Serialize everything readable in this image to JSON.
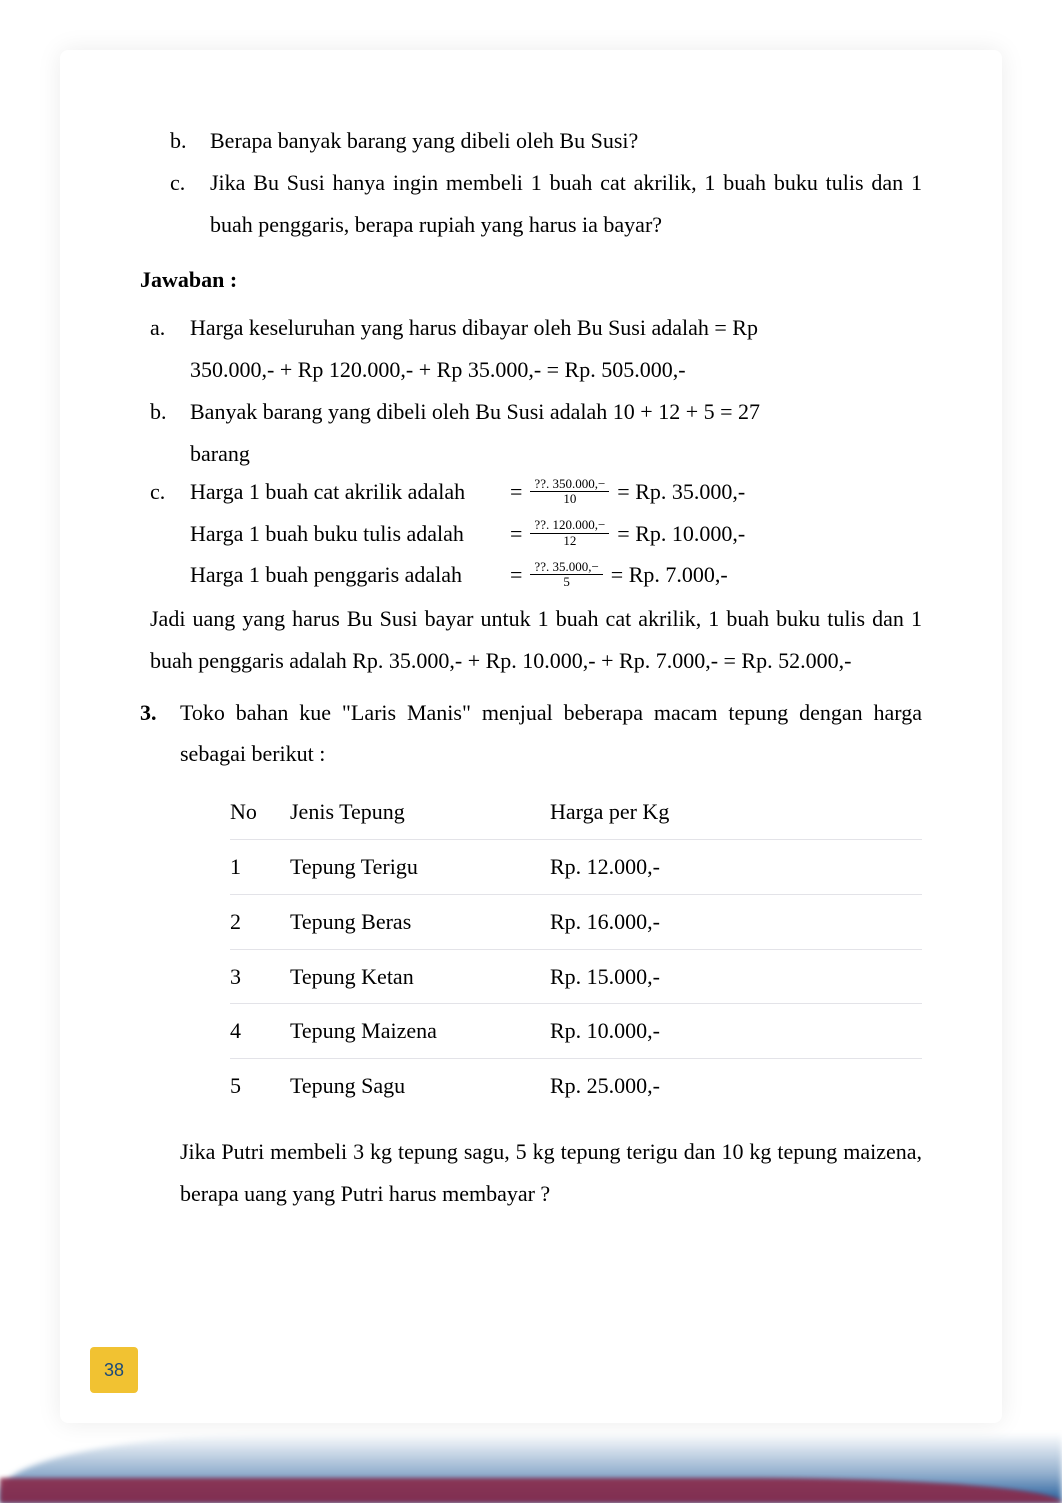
{
  "questions": {
    "b": {
      "marker": "b.",
      "text": "Berapa banyak barang yang dibeli oleh Bu Susi?"
    },
    "c": {
      "marker": "c.",
      "text": "Jika Bu Susi hanya ingin membeli 1 buah cat akrilik, 1 buah buku tulis dan 1 buah penggaris, berapa rupiah yang harus ia bayar?"
    }
  },
  "jawaban_label": "Jawaban :",
  "answers": {
    "a": {
      "marker": "a.",
      "line1": "Harga keseluruhan yang harus dibayar oleh Bu Susi adalah = Rp",
      "line2": "350.000,- + Rp 120.000,- + Rp 35.000,- = Rp. 505.000,-"
    },
    "b": {
      "marker": "b.",
      "line1": "Banyak barang yang dibeli oleh Bu Susi adalah 10 + 12 + 5 = 27",
      "line2": "barang"
    },
    "c": {
      "marker": "c.",
      "calc1": {
        "label": "Harga 1 buah cat akrilik adalah",
        "prefix": "= ",
        "frac_num": "??.  350.000,−",
        "frac_den": "10",
        "result": " = Rp. 35.000,-"
      },
      "calc2": {
        "label": "Harga 1 buah buku tulis adalah",
        "prefix": "= ",
        "frac_num": "??.  120.000,−",
        "frac_den": "12",
        "result": " = Rp. 10.000,-"
      },
      "calc3": {
        "label": "Harga 1 buah penggaris adalah",
        "prefix": "= ",
        "frac_num": "??.  35.000,−",
        "frac_den": "5",
        "result": " = Rp. 7.000,-"
      }
    },
    "conclusion": "Jadi uang yang harus Bu Susi bayar untuk 1 buah cat akrilik, 1 buah buku tulis dan 1 buah penggaris adalah Rp. 35.000,- + Rp. 10.000,- + Rp. 7.000,- = Rp. 52.000,-"
  },
  "q3": {
    "marker": "3.",
    "intro": "Toko bahan kue \"Laris Manis\" menjual beberapa macam tepung dengan harga sebagai berikut :",
    "table": {
      "header": {
        "no": "No",
        "jenis": "Jenis Tepung",
        "harga": "Harga per Kg"
      },
      "rows": [
        {
          "no": "1",
          "jenis": "Tepung Terigu",
          "harga": "Rp. 12.000,-"
        },
        {
          "no": "2",
          "jenis": "Tepung Beras",
          "harga": "Rp. 16.000,-"
        },
        {
          "no": "3",
          "jenis": "Tepung Ketan",
          "harga": "Rp. 15.000,-"
        },
        {
          "no": "4",
          "jenis": "Tepung Maizena",
          "harga": "Rp. 10.000,-"
        },
        {
          "no": "5",
          "jenis": "Tepung Sagu",
          "harga": "Rp. 25.000,-"
        }
      ]
    },
    "followup": "Jika Putri membeli 3 kg tepung sagu, 5 kg tepung terigu dan 10 kg tepung maizena, berapa uang yang Putri harus membayar ?"
  },
  "page_number": "38"
}
